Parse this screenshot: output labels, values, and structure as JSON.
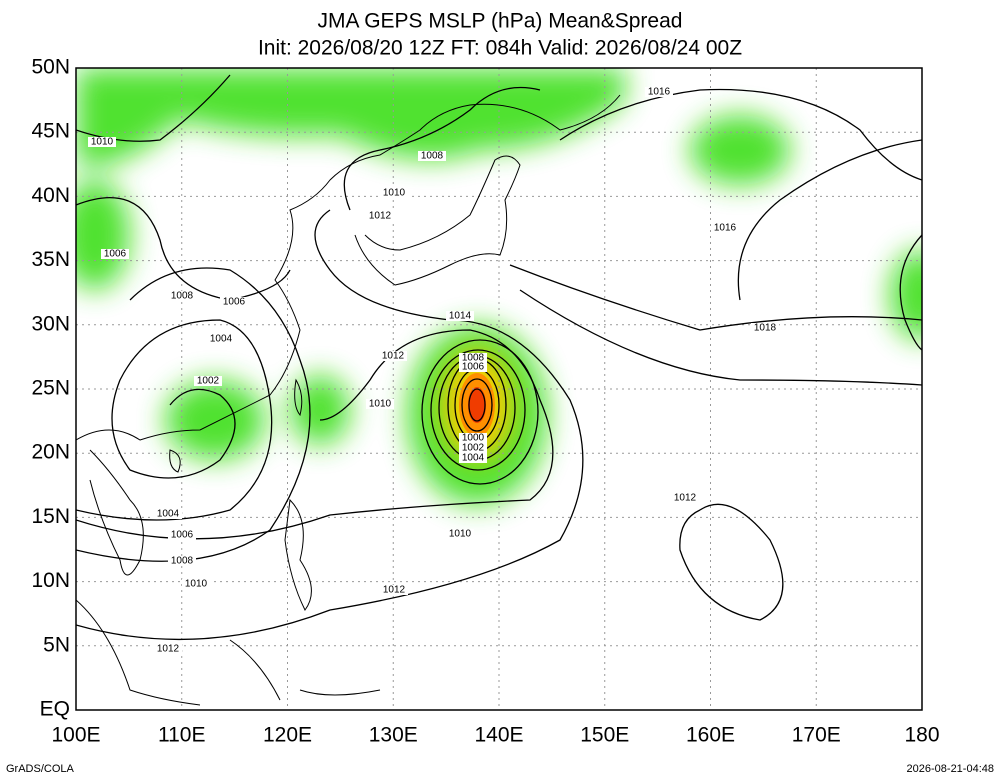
{
  "title": "JMA GEPS MSLP (hPa) Mean&Spread",
  "subtitle": "Init: 2026/08/20 12Z  FT: 084h  Valid: 2026/08/24 00Z",
  "map": {
    "xlim": [
      100,
      180
    ],
    "ylim": [
      0,
      50
    ],
    "xticks": [
      {
        "value": 100,
        "label": "100E"
      },
      {
        "value": 110,
        "label": "110E"
      },
      {
        "value": 120,
        "label": "120E"
      },
      {
        "value": 130,
        "label": "130E"
      },
      {
        "value": 140,
        "label": "140E"
      },
      {
        "value": 150,
        "label": "150E"
      },
      {
        "value": 160,
        "label": "160E"
      },
      {
        "value": 170,
        "label": "170E"
      },
      180
    ],
    "yticks": [
      {
        "value": 0,
        "label": "EQ"
      },
      {
        "value": 5,
        "label": "5N"
      },
      {
        "value": 10,
        "label": "10N"
      },
      {
        "value": 15,
        "label": "15N"
      },
      {
        "value": 20,
        "label": "20N"
      },
      {
        "value": 25,
        "label": "25N"
      },
      {
        "value": 30,
        "label": "30N"
      },
      {
        "value": 35,
        "label": "35N"
      },
      {
        "value": 40,
        "label": "40N"
      },
      {
        "value": 45,
        "label": "45N"
      },
      {
        "value": 50,
        "label": "50N"
      }
    ],
    "grid": true,
    "contour_labels": [
      "1016",
      "1010",
      "1008",
      "1010",
      "1012",
      "1016",
      "1006",
      "1008",
      "1006",
      "1014",
      "1018",
      "1004",
      "1012",
      "1008",
      "1006",
      "1002",
      "1010",
      "1000",
      "1002",
      "1004",
      "1012",
      "1004",
      "1006",
      "1010",
      "1008",
      "1010",
      "1012",
      "1012"
    ]
  },
  "footer_left": "GrADS/COLA",
  "footer_right": "2026-08-21-04:48"
}
